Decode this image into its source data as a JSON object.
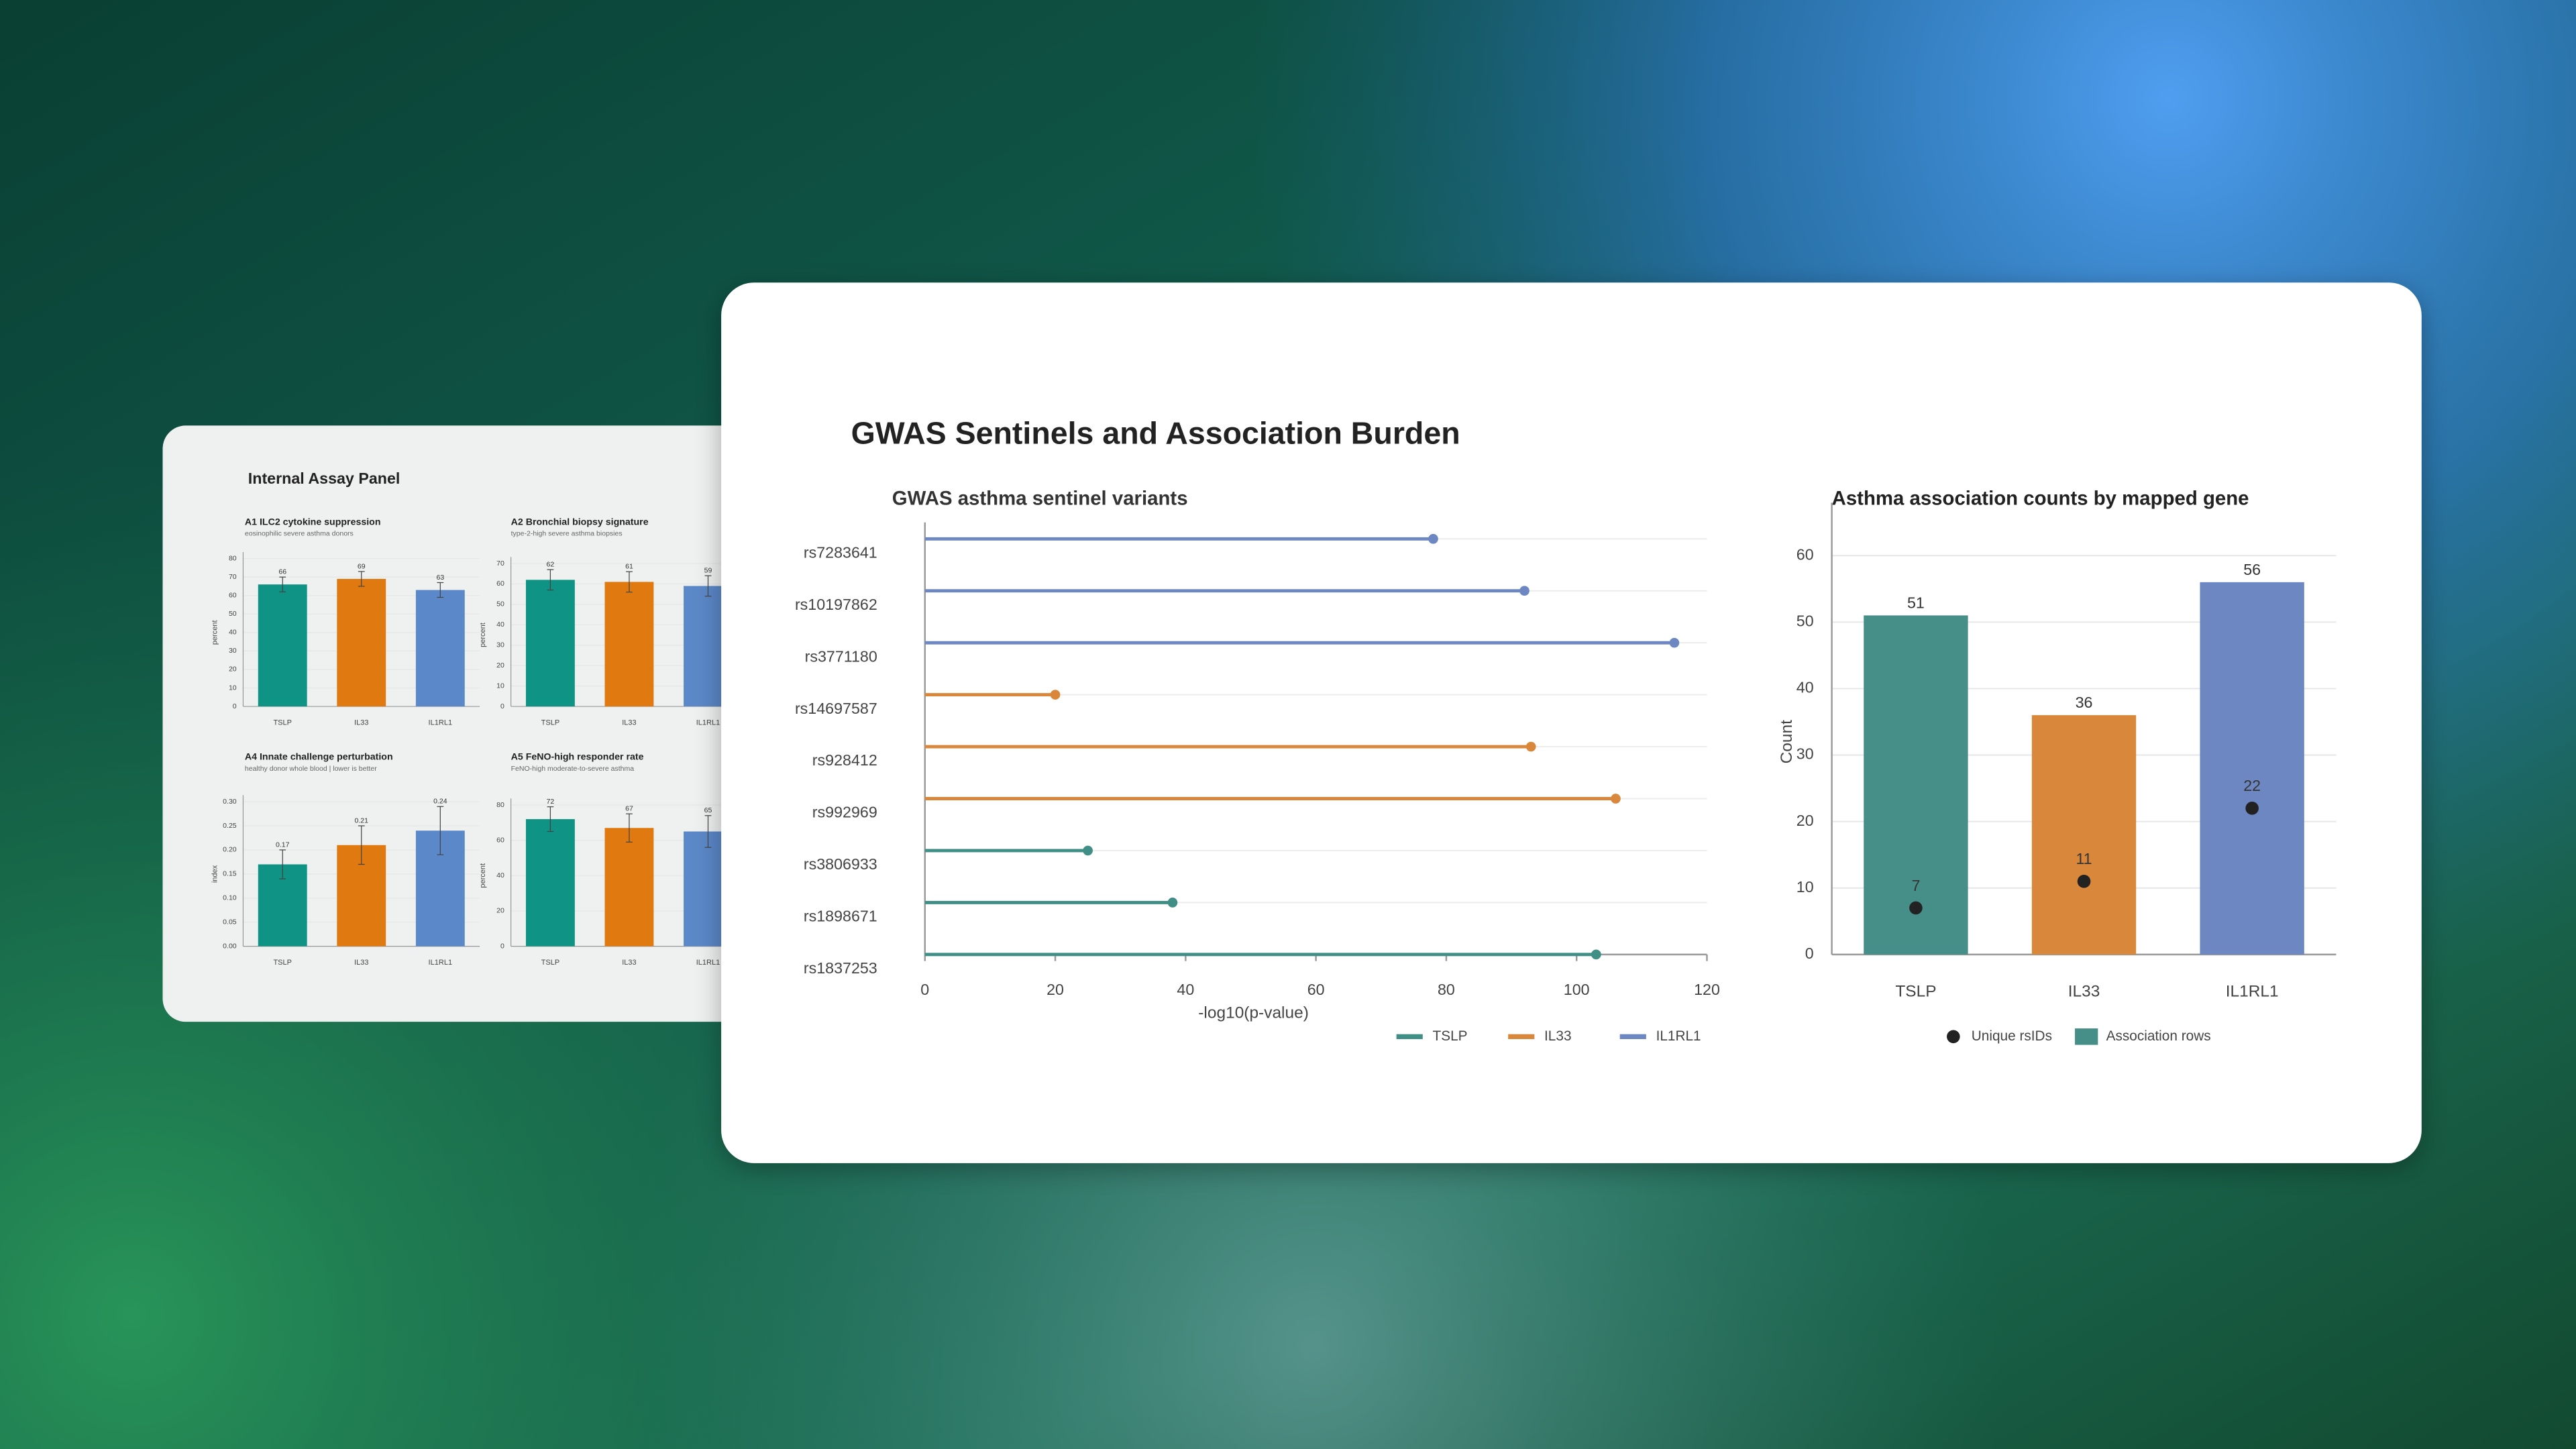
{
  "page_title": "GWAS Sentinels and Association Burden",
  "back_panel": {
    "title": "Internal Assay Panel"
  },
  "chart_data": [
    {
      "type": "lollipop",
      "title": "GWAS asthma sentinel variants",
      "xlabel": "-log10(p-value)",
      "categories": [
        "rs7283641",
        "rs10197862",
        "rs3771180",
        "rs14697587",
        "rs928412",
        "rs992969",
        "rs3806933",
        "rs1898671",
        "rs1837253"
      ],
      "series": [
        {
          "name": "TSLP",
          "color": "#3f8f87",
          "values": [
            null,
            null,
            null,
            null,
            null,
            null,
            25,
            38,
            103
          ]
        },
        {
          "name": "IL33",
          "color": "#d9873b",
          "values": [
            null,
            null,
            null,
            20,
            93,
            106,
            null,
            null,
            null
          ]
        },
        {
          "name": "IL1RL1",
          "color": "#6d87c2",
          "values": [
            78,
            92,
            115,
            null,
            null,
            null,
            null,
            null,
            null
          ]
        }
      ],
      "xlim": [
        0,
        120
      ],
      "xticks": [
        0,
        20,
        40,
        60,
        80,
        100,
        120
      ],
      "grid": true,
      "legend": "bottom"
    },
    {
      "type": "bar",
      "title": "Asthma association counts by mapped gene",
      "ylabel": "Count",
      "categories": [
        "TSLP",
        "IL33",
        "IL1RL1"
      ],
      "series": [
        {
          "name": "Unique rsIDs",
          "type": "scatter",
          "color": "#222222",
          "values": [
            7,
            11,
            22
          ]
        },
        {
          "name": "Association rows",
          "type": "bar",
          "color": "#468f88",
          "colors": [
            "#468f88",
            "#d9873b",
            "#6d87c2"
          ],
          "values": [
            51,
            36,
            56
          ]
        }
      ],
      "ylim": [
        0,
        64
      ],
      "yticks": [
        0,
        10,
        20,
        30,
        40,
        50,
        60
      ],
      "grid": true,
      "legend": "bottom"
    },
    {
      "type": "bar",
      "title": "A1 ILC2 cytokine suppression",
      "subtitle": "eosinophilic severe asthma donors",
      "ylabel": "percent",
      "categories": [
        "TSLP",
        "IL33",
        "IL1RL1"
      ],
      "values": [
        66,
        69,
        63
      ],
      "errors": [
        4,
        4,
        4
      ],
      "colors": [
        "#0e9384",
        "#e07a10",
        "#5b88c8"
      ],
      "ylim": [
        0,
        80
      ],
      "yticks": [
        0,
        10,
        20,
        30,
        40,
        50,
        60,
        70,
        80
      ]
    },
    {
      "type": "bar",
      "title": "A2 Bronchial biopsy signature",
      "subtitle": "type-2-high severe asthma biopsies",
      "ylabel": "percent",
      "categories": [
        "TSLP",
        "IL33",
        "IL1RL1"
      ],
      "values": [
        62,
        61,
        59
      ],
      "errors": [
        5,
        5,
        5
      ],
      "colors": [
        "#0e9384",
        "#e07a10",
        "#5b88c8"
      ],
      "ylim": [
        0,
        70
      ],
      "yticks": [
        0,
        10,
        20,
        30,
        40,
        50,
        60,
        70
      ]
    },
    {
      "type": "bar",
      "title": "A4 Innate challenge perturbation",
      "subtitle": "healthy donor whole blood | lower is better",
      "ylabel": "index",
      "categories": [
        "TSLP",
        "IL33",
        "IL1RL1"
      ],
      "values": [
        0.17,
        0.21,
        0.24
      ],
      "errors": [
        0.03,
        0.04,
        0.05
      ],
      "colors": [
        "#0e9384",
        "#e07a10",
        "#5b88c8"
      ],
      "ylim": [
        0,
        0.3
      ],
      "yticks": [
        {
          "value": 0,
          "label": "0.00"
        },
        0.05,
        {
          "value": 0.1,
          "label": "0.10"
        },
        0.15,
        {
          "value": 0.2,
          "label": "0.20"
        },
        0.25,
        {
          "value": 0.3,
          "label": "0.30"
        }
      ]
    },
    {
      "type": "bar",
      "title": "A5 FeNO-high responder rate",
      "subtitle": "FeNO-high moderate-to-severe asthma",
      "ylabel": "percent",
      "categories": [
        "TSLP",
        "IL33",
        "IL1RL1"
      ],
      "values": [
        72,
        67,
        65
      ],
      "errors": [
        7,
        8,
        9
      ],
      "colors": [
        "#0e9384",
        "#e07a10",
        "#5b88c8"
      ],
      "ylim": [
        0,
        80
      ],
      "yticks": [
        0,
        20,
        40,
        60,
        80
      ]
    }
  ]
}
